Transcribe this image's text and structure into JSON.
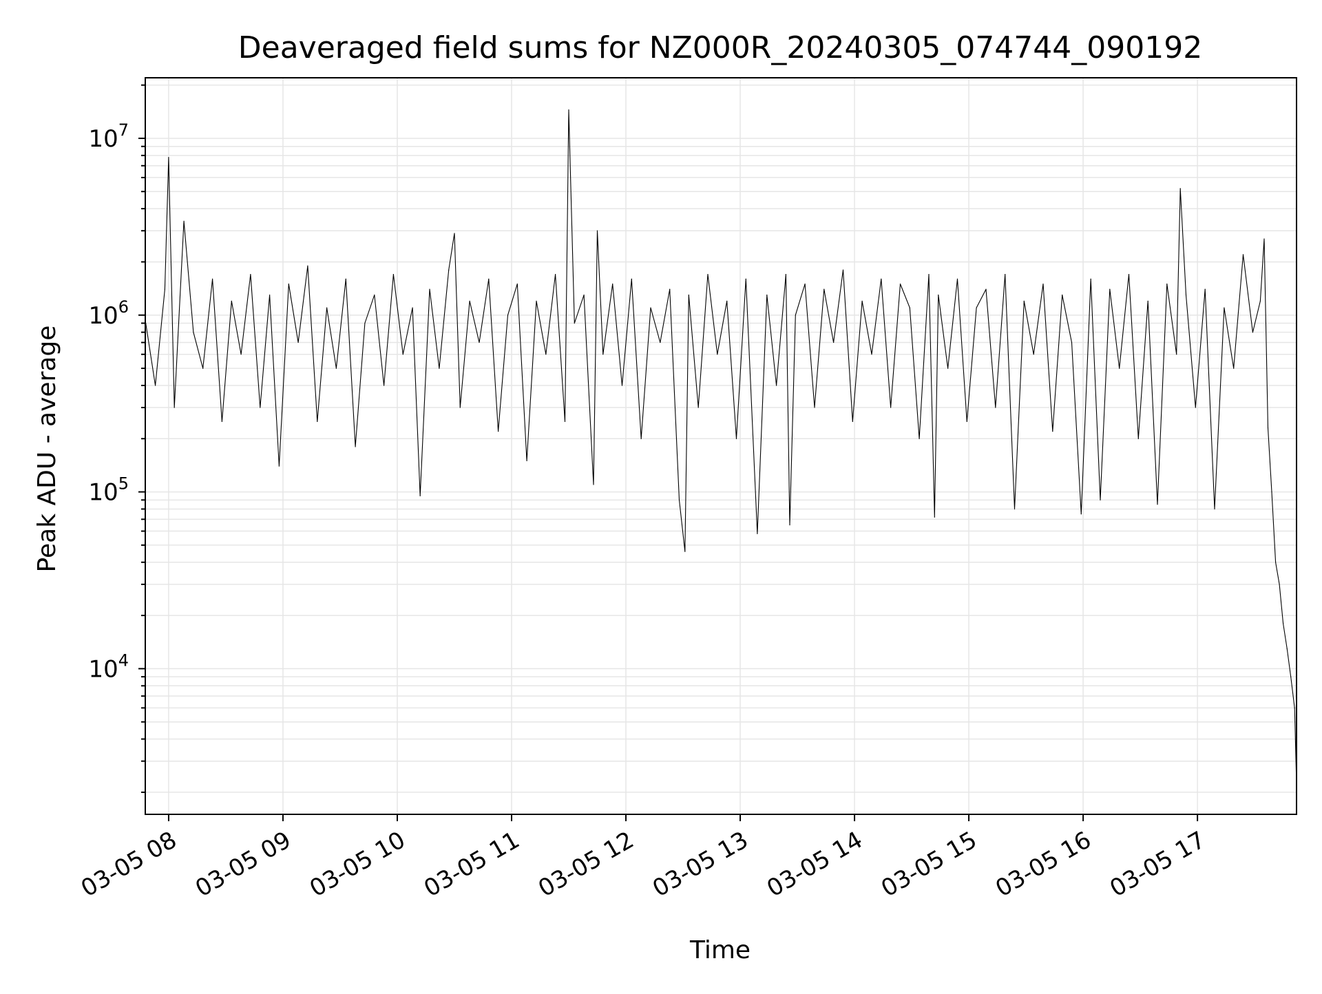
{
  "chart_data": {
    "type": "line",
    "title": "Deaveraged field sums for NZ000R_20240305_074744_090192",
    "xlabel": "Time",
    "ylabel": "Peak ADU - average",
    "y_scale": "log",
    "grid": true,
    "grid_minor": true,
    "legend": "none",
    "series_color": "#000000",
    "xlim": [
      "2024-03-05 07:47:44",
      "2024-03-05 17:52:00"
    ],
    "ylim": [
      1500,
      22000000
    ],
    "x_ticks": [
      {
        "value": "2024-03-05 08:00",
        "label": "03-05 08"
      },
      {
        "value": "2024-03-05 09:00",
        "label": "03-05 09"
      },
      {
        "value": "2024-03-05 10:00",
        "label": "03-05 10"
      },
      {
        "value": "2024-03-05 11:00",
        "label": "03-05 11"
      },
      {
        "value": "2024-03-05 12:00",
        "label": "03-05 12"
      },
      {
        "value": "2024-03-05 13:00",
        "label": "03-05 13"
      },
      {
        "value": "2024-03-05 14:00",
        "label": "03-05 14"
      },
      {
        "value": "2024-03-05 15:00",
        "label": "03-05 15"
      },
      {
        "value": "2024-03-05 16:00",
        "label": "03-05 16"
      },
      {
        "value": "2024-03-05 17:00",
        "label": "03-05 17"
      }
    ],
    "y_ticks": [
      {
        "value": 10000,
        "base": "10",
        "exp": "4"
      },
      {
        "value": 100000,
        "base": "10",
        "exp": "5"
      },
      {
        "value": 1000000,
        "base": "10",
        "exp": "6"
      },
      {
        "value": 10000000,
        "base": "10",
        "exp": "7"
      }
    ],
    "series": [
      {
        "x": [
          "2024-03-05 07:48",
          "2024-03-05 07:53",
          "2024-03-05 07:58",
          "2024-03-05 08:00",
          "2024-03-05 08:03",
          "2024-03-05 08:08",
          "2024-03-05 08:13",
          "2024-03-05 08:18",
          "2024-03-05 08:23",
          "2024-03-05 08:28",
          "2024-03-05 08:33",
          "2024-03-05 08:38",
          "2024-03-05 08:43",
          "2024-03-05 08:48",
          "2024-03-05 08:53",
          "2024-03-05 08:58",
          "2024-03-05 09:03",
          "2024-03-05 09:08",
          "2024-03-05 09:13",
          "2024-03-05 09:18",
          "2024-03-05 09:23",
          "2024-03-05 09:28",
          "2024-03-05 09:33",
          "2024-03-05 09:38",
          "2024-03-05 09:43",
          "2024-03-05 09:48",
          "2024-03-05 09:53",
          "2024-03-05 09:58",
          "2024-03-05 10:03",
          "2024-03-05 10:08",
          "2024-03-05 10:12",
          "2024-03-05 10:17",
          "2024-03-05 10:22",
          "2024-03-05 10:27",
          "2024-03-05 10:30",
          "2024-03-05 10:33",
          "2024-03-05 10:38",
          "2024-03-05 10:43",
          "2024-03-05 10:48",
          "2024-03-05 10:53",
          "2024-03-05 10:58",
          "2024-03-05 11:03",
          "2024-03-05 11:08",
          "2024-03-05 11:13",
          "2024-03-05 11:18",
          "2024-03-05 11:23",
          "2024-03-05 11:28",
          "2024-03-05 11:30",
          "2024-03-05 11:33",
          "2024-03-05 11:38",
          "2024-03-05 11:43",
          "2024-03-05 11:45",
          "2024-03-05 11:48",
          "2024-03-05 11:53",
          "2024-03-05 11:58",
          "2024-03-05 12:03",
          "2024-03-05 12:08",
          "2024-03-05 12:13",
          "2024-03-05 12:18",
          "2024-03-05 12:23",
          "2024-03-05 12:28",
          "2024-03-05 12:31",
          "2024-03-05 12:33",
          "2024-03-05 12:38",
          "2024-03-05 12:43",
          "2024-03-05 12:48",
          "2024-03-05 12:53",
          "2024-03-05 12:58",
          "2024-03-05 13:03",
          "2024-03-05 13:09",
          "2024-03-05 13:14",
          "2024-03-05 13:19",
          "2024-03-05 13:24",
          "2024-03-05 13:26",
          "2024-03-05 13:29",
          "2024-03-05 13:34",
          "2024-03-05 13:39",
          "2024-03-05 13:44",
          "2024-03-05 13:49",
          "2024-03-05 13:54",
          "2024-03-05 13:59",
          "2024-03-05 14:04",
          "2024-03-05 14:09",
          "2024-03-05 14:14",
          "2024-03-05 14:19",
          "2024-03-05 14:24",
          "2024-03-05 14:29",
          "2024-03-05 14:34",
          "2024-03-05 14:39",
          "2024-03-05 14:42",
          "2024-03-05 14:44",
          "2024-03-05 14:49",
          "2024-03-05 14:54",
          "2024-03-05 14:59",
          "2024-03-05 15:04",
          "2024-03-05 15:09",
          "2024-03-05 15:14",
          "2024-03-05 15:19",
          "2024-03-05 15:24",
          "2024-03-05 15:29",
          "2024-03-05 15:34",
          "2024-03-05 15:39",
          "2024-03-05 15:44",
          "2024-03-05 15:49",
          "2024-03-05 15:54",
          "2024-03-05 15:59",
          "2024-03-05 16:04",
          "2024-03-05 16:09",
          "2024-03-05 16:14",
          "2024-03-05 16:19",
          "2024-03-05 16:24",
          "2024-03-05 16:29",
          "2024-03-05 16:34",
          "2024-03-05 16:39",
          "2024-03-05 16:44",
          "2024-03-05 16:49",
          "2024-03-05 16:51",
          "2024-03-05 16:54",
          "2024-03-05 16:59",
          "2024-03-05 17:04",
          "2024-03-05 17:09",
          "2024-03-05 17:14",
          "2024-03-05 17:19",
          "2024-03-05 17:24",
          "2024-03-05 17:29",
          "2024-03-05 17:33",
          "2024-03-05 17:35",
          "2024-03-05 17:37",
          "2024-03-05 17:39",
          "2024-03-05 17:41",
          "2024-03-05 17:43",
          "2024-03-05 17:45",
          "2024-03-05 17:47",
          "2024-03-05 17:49",
          "2024-03-05 17:51",
          "2024-03-05 17:52"
        ],
        "values": [
          900000,
          400000,
          1400000,
          7800000,
          300000,
          3400000,
          800000,
          500000,
          1600000,
          250000,
          1200000,
          600000,
          1700000,
          300000,
          1300000,
          140000,
          1500000,
          700000,
          1900000,
          250000,
          1100000,
          500000,
          1600000,
          180000,
          900000,
          1300000,
          400000,
          1700000,
          600000,
          1100000,
          95000,
          1400000,
          500000,
          1800000,
          2900000,
          300000,
          1200000,
          700000,
          1600000,
          220000,
          1000000,
          1500000,
          150000,
          1200000,
          600000,
          1700000,
          250000,
          14500000,
          900000,
          1300000,
          110000,
          3000000,
          600000,
          1500000,
          400000,
          1600000,
          200000,
          1100000,
          700000,
          1400000,
          90000,
          46000,
          1300000,
          300000,
          1700000,
          600000,
          1200000,
          200000,
          1600000,
          58000,
          1300000,
          400000,
          1700000,
          65000,
          1000000,
          1500000,
          300000,
          1400000,
          700000,
          1800000,
          250000,
          1200000,
          600000,
          1600000,
          300000,
          1500000,
          1100000,
          200000,
          1700000,
          72000,
          1300000,
          500000,
          1600000,
          250000,
          1100000,
          1400000,
          300000,
          1700000,
          80000,
          1200000,
          600000,
          1500000,
          220000,
          1300000,
          700000,
          75000,
          1600000,
          90000,
          1400000,
          500000,
          1700000,
          200000,
          1200000,
          85000,
          1500000,
          600000,
          5200000,
          1300000,
          300000,
          1400000,
          80000,
          1100000,
          500000,
          2200000,
          800000,
          1200000,
          2700000,
          230000,
          100000,
          40000,
          30000,
          18000,
          13000,
          9000,
          6000,
          2200
        ]
      }
    ]
  }
}
